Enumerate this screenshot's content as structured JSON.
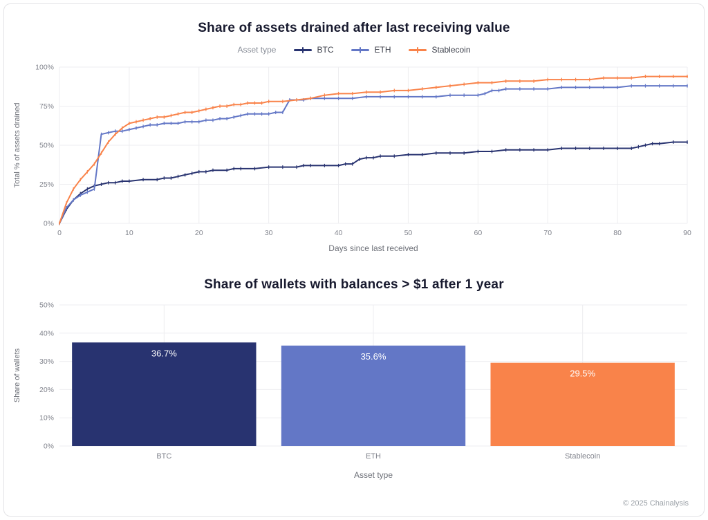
{
  "page": {
    "footer": "© 2025 Chainalysis"
  },
  "chart_data": [
    {
      "type": "line",
      "title": "Share of assets drained after last receiving value",
      "legend_title": "Asset type",
      "xlabel": "Days since last received",
      "ylabel": "Total % of assets drained",
      "xlim": [
        0,
        90
      ],
      "ylim": [
        0,
        100
      ],
      "xticks": [
        0,
        10,
        20,
        30,
        40,
        50,
        60,
        70,
        80,
        90
      ],
      "yticks": [
        0,
        25,
        50,
        75,
        100
      ],
      "ytick_suffix": "%",
      "grid": true,
      "legend_position": "top",
      "series": [
        {
          "name": "BTC",
          "color": "#283370",
          "points": [
            [
              0,
              0
            ],
            [
              1,
              9
            ],
            [
              2,
              15
            ],
            [
              3,
              19
            ],
            [
              4,
              22
            ],
            [
              5,
              24
            ],
            [
              6,
              25
            ],
            [
              7,
              26
            ],
            [
              8,
              26
            ],
            [
              9,
              27
            ],
            [
              10,
              27
            ],
            [
              12,
              28
            ],
            [
              14,
              28
            ],
            [
              15,
              29
            ],
            [
              16,
              29
            ],
            [
              17,
              30
            ],
            [
              18,
              31
            ],
            [
              19,
              32
            ],
            [
              20,
              33
            ],
            [
              21,
              33
            ],
            [
              22,
              34
            ],
            [
              24,
              34
            ],
            [
              25,
              35
            ],
            [
              26,
              35
            ],
            [
              28,
              35
            ],
            [
              30,
              36
            ],
            [
              32,
              36
            ],
            [
              34,
              36
            ],
            [
              35,
              37
            ],
            [
              36,
              37
            ],
            [
              38,
              37
            ],
            [
              40,
              37
            ],
            [
              41,
              38
            ],
            [
              42,
              38
            ],
            [
              43,
              41
            ],
            [
              44,
              42
            ],
            [
              45,
              42
            ],
            [
              46,
              43
            ],
            [
              48,
              43
            ],
            [
              50,
              44
            ],
            [
              52,
              44
            ],
            [
              54,
              45
            ],
            [
              56,
              45
            ],
            [
              58,
              45
            ],
            [
              60,
              46
            ],
            [
              62,
              46
            ],
            [
              64,
              47
            ],
            [
              66,
              47
            ],
            [
              68,
              47
            ],
            [
              70,
              47
            ],
            [
              72,
              48
            ],
            [
              74,
              48
            ],
            [
              76,
              48
            ],
            [
              78,
              48
            ],
            [
              80,
              48
            ],
            [
              82,
              48
            ],
            [
              83,
              49
            ],
            [
              84,
              50
            ],
            [
              85,
              51
            ],
            [
              86,
              51
            ],
            [
              88,
              52
            ],
            [
              90,
              52
            ]
          ]
        },
        {
          "name": "ETH",
          "color": "#6377c6",
          "points": [
            [
              0,
              0
            ],
            [
              1,
              10
            ],
            [
              2,
              15
            ],
            [
              3,
              18
            ],
            [
              4,
              20
            ],
            [
              5,
              22
            ],
            [
              6,
              57
            ],
            [
              7,
              58
            ],
            [
              8,
              59
            ],
            [
              9,
              59
            ],
            [
              10,
              60
            ],
            [
              11,
              61
            ],
            [
              12,
              62
            ],
            [
              13,
              63
            ],
            [
              14,
              63
            ],
            [
              15,
              64
            ],
            [
              16,
              64
            ],
            [
              17,
              64
            ],
            [
              18,
              65
            ],
            [
              19,
              65
            ],
            [
              20,
              65
            ],
            [
              21,
              66
            ],
            [
              22,
              66
            ],
            [
              23,
              67
            ],
            [
              24,
              67
            ],
            [
              25,
              68
            ],
            [
              26,
              69
            ],
            [
              27,
              70
            ],
            [
              28,
              70
            ],
            [
              29,
              70
            ],
            [
              30,
              70
            ],
            [
              31,
              71
            ],
            [
              32,
              71
            ],
            [
              33,
              79
            ],
            [
              34,
              79
            ],
            [
              35,
              79
            ],
            [
              36,
              80
            ],
            [
              38,
              80
            ],
            [
              40,
              80
            ],
            [
              42,
              80
            ],
            [
              44,
              81
            ],
            [
              46,
              81
            ],
            [
              48,
              81
            ],
            [
              50,
              81
            ],
            [
              52,
              81
            ],
            [
              54,
              81
            ],
            [
              56,
              82
            ],
            [
              58,
              82
            ],
            [
              60,
              82
            ],
            [
              61,
              83
            ],
            [
              62,
              85
            ],
            [
              63,
              85
            ],
            [
              64,
              86
            ],
            [
              66,
              86
            ],
            [
              68,
              86
            ],
            [
              70,
              86
            ],
            [
              72,
              87
            ],
            [
              74,
              87
            ],
            [
              76,
              87
            ],
            [
              78,
              87
            ],
            [
              80,
              87
            ],
            [
              82,
              88
            ],
            [
              84,
              88
            ],
            [
              86,
              88
            ],
            [
              88,
              88
            ],
            [
              90,
              88
            ]
          ]
        },
        {
          "name": "Stablecoin",
          "color": "#f9834a",
          "points": [
            [
              0,
              0
            ],
            [
              1,
              13
            ],
            [
              2,
              22
            ],
            [
              3,
              28
            ],
            [
              4,
              33
            ],
            [
              5,
              38
            ],
            [
              6,
              45
            ],
            [
              7,
              52
            ],
            [
              8,
              57
            ],
            [
              9,
              61
            ],
            [
              10,
              64
            ],
            [
              11,
              65
            ],
            [
              12,
              66
            ],
            [
              13,
              67
            ],
            [
              14,
              68
            ],
            [
              15,
              68
            ],
            [
              16,
              69
            ],
            [
              17,
              70
            ],
            [
              18,
              71
            ],
            [
              19,
              71
            ],
            [
              20,
              72
            ],
            [
              21,
              73
            ],
            [
              22,
              74
            ],
            [
              23,
              75
            ],
            [
              24,
              75
            ],
            [
              25,
              76
            ],
            [
              26,
              76
            ],
            [
              27,
              77
            ],
            [
              28,
              77
            ],
            [
              29,
              77
            ],
            [
              30,
              78
            ],
            [
              32,
              78
            ],
            [
              34,
              79
            ],
            [
              36,
              80
            ],
            [
              38,
              82
            ],
            [
              40,
              83
            ],
            [
              42,
              83
            ],
            [
              44,
              84
            ],
            [
              46,
              84
            ],
            [
              48,
              85
            ],
            [
              50,
              85
            ],
            [
              52,
              86
            ],
            [
              54,
              87
            ],
            [
              56,
              88
            ],
            [
              58,
              89
            ],
            [
              60,
              90
            ],
            [
              62,
              90
            ],
            [
              64,
              91
            ],
            [
              66,
              91
            ],
            [
              68,
              91
            ],
            [
              70,
              92
            ],
            [
              72,
              92
            ],
            [
              74,
              92
            ],
            [
              76,
              92
            ],
            [
              78,
              93
            ],
            [
              80,
              93
            ],
            [
              82,
              93
            ],
            [
              84,
              94
            ],
            [
              86,
              94
            ],
            [
              88,
              94
            ],
            [
              90,
              94
            ]
          ]
        }
      ]
    },
    {
      "type": "bar",
      "title": "Share of wallets with balances > $1 after 1 year",
      "xlabel": "Asset type",
      "ylabel": "Share of wallets",
      "ylim": [
        0,
        50
      ],
      "yticks": [
        0,
        10,
        20,
        30,
        40,
        50
      ],
      "ytick_suffix": "%",
      "grid": true,
      "categories": [
        "BTC",
        "ETH",
        "Stablecoin"
      ],
      "values": [
        36.7,
        35.6,
        29.5
      ],
      "value_labels": [
        "36.7%",
        "35.6%",
        "29.5%"
      ],
      "colors": [
        "#283370",
        "#6377c6",
        "#f9834a"
      ]
    }
  ]
}
